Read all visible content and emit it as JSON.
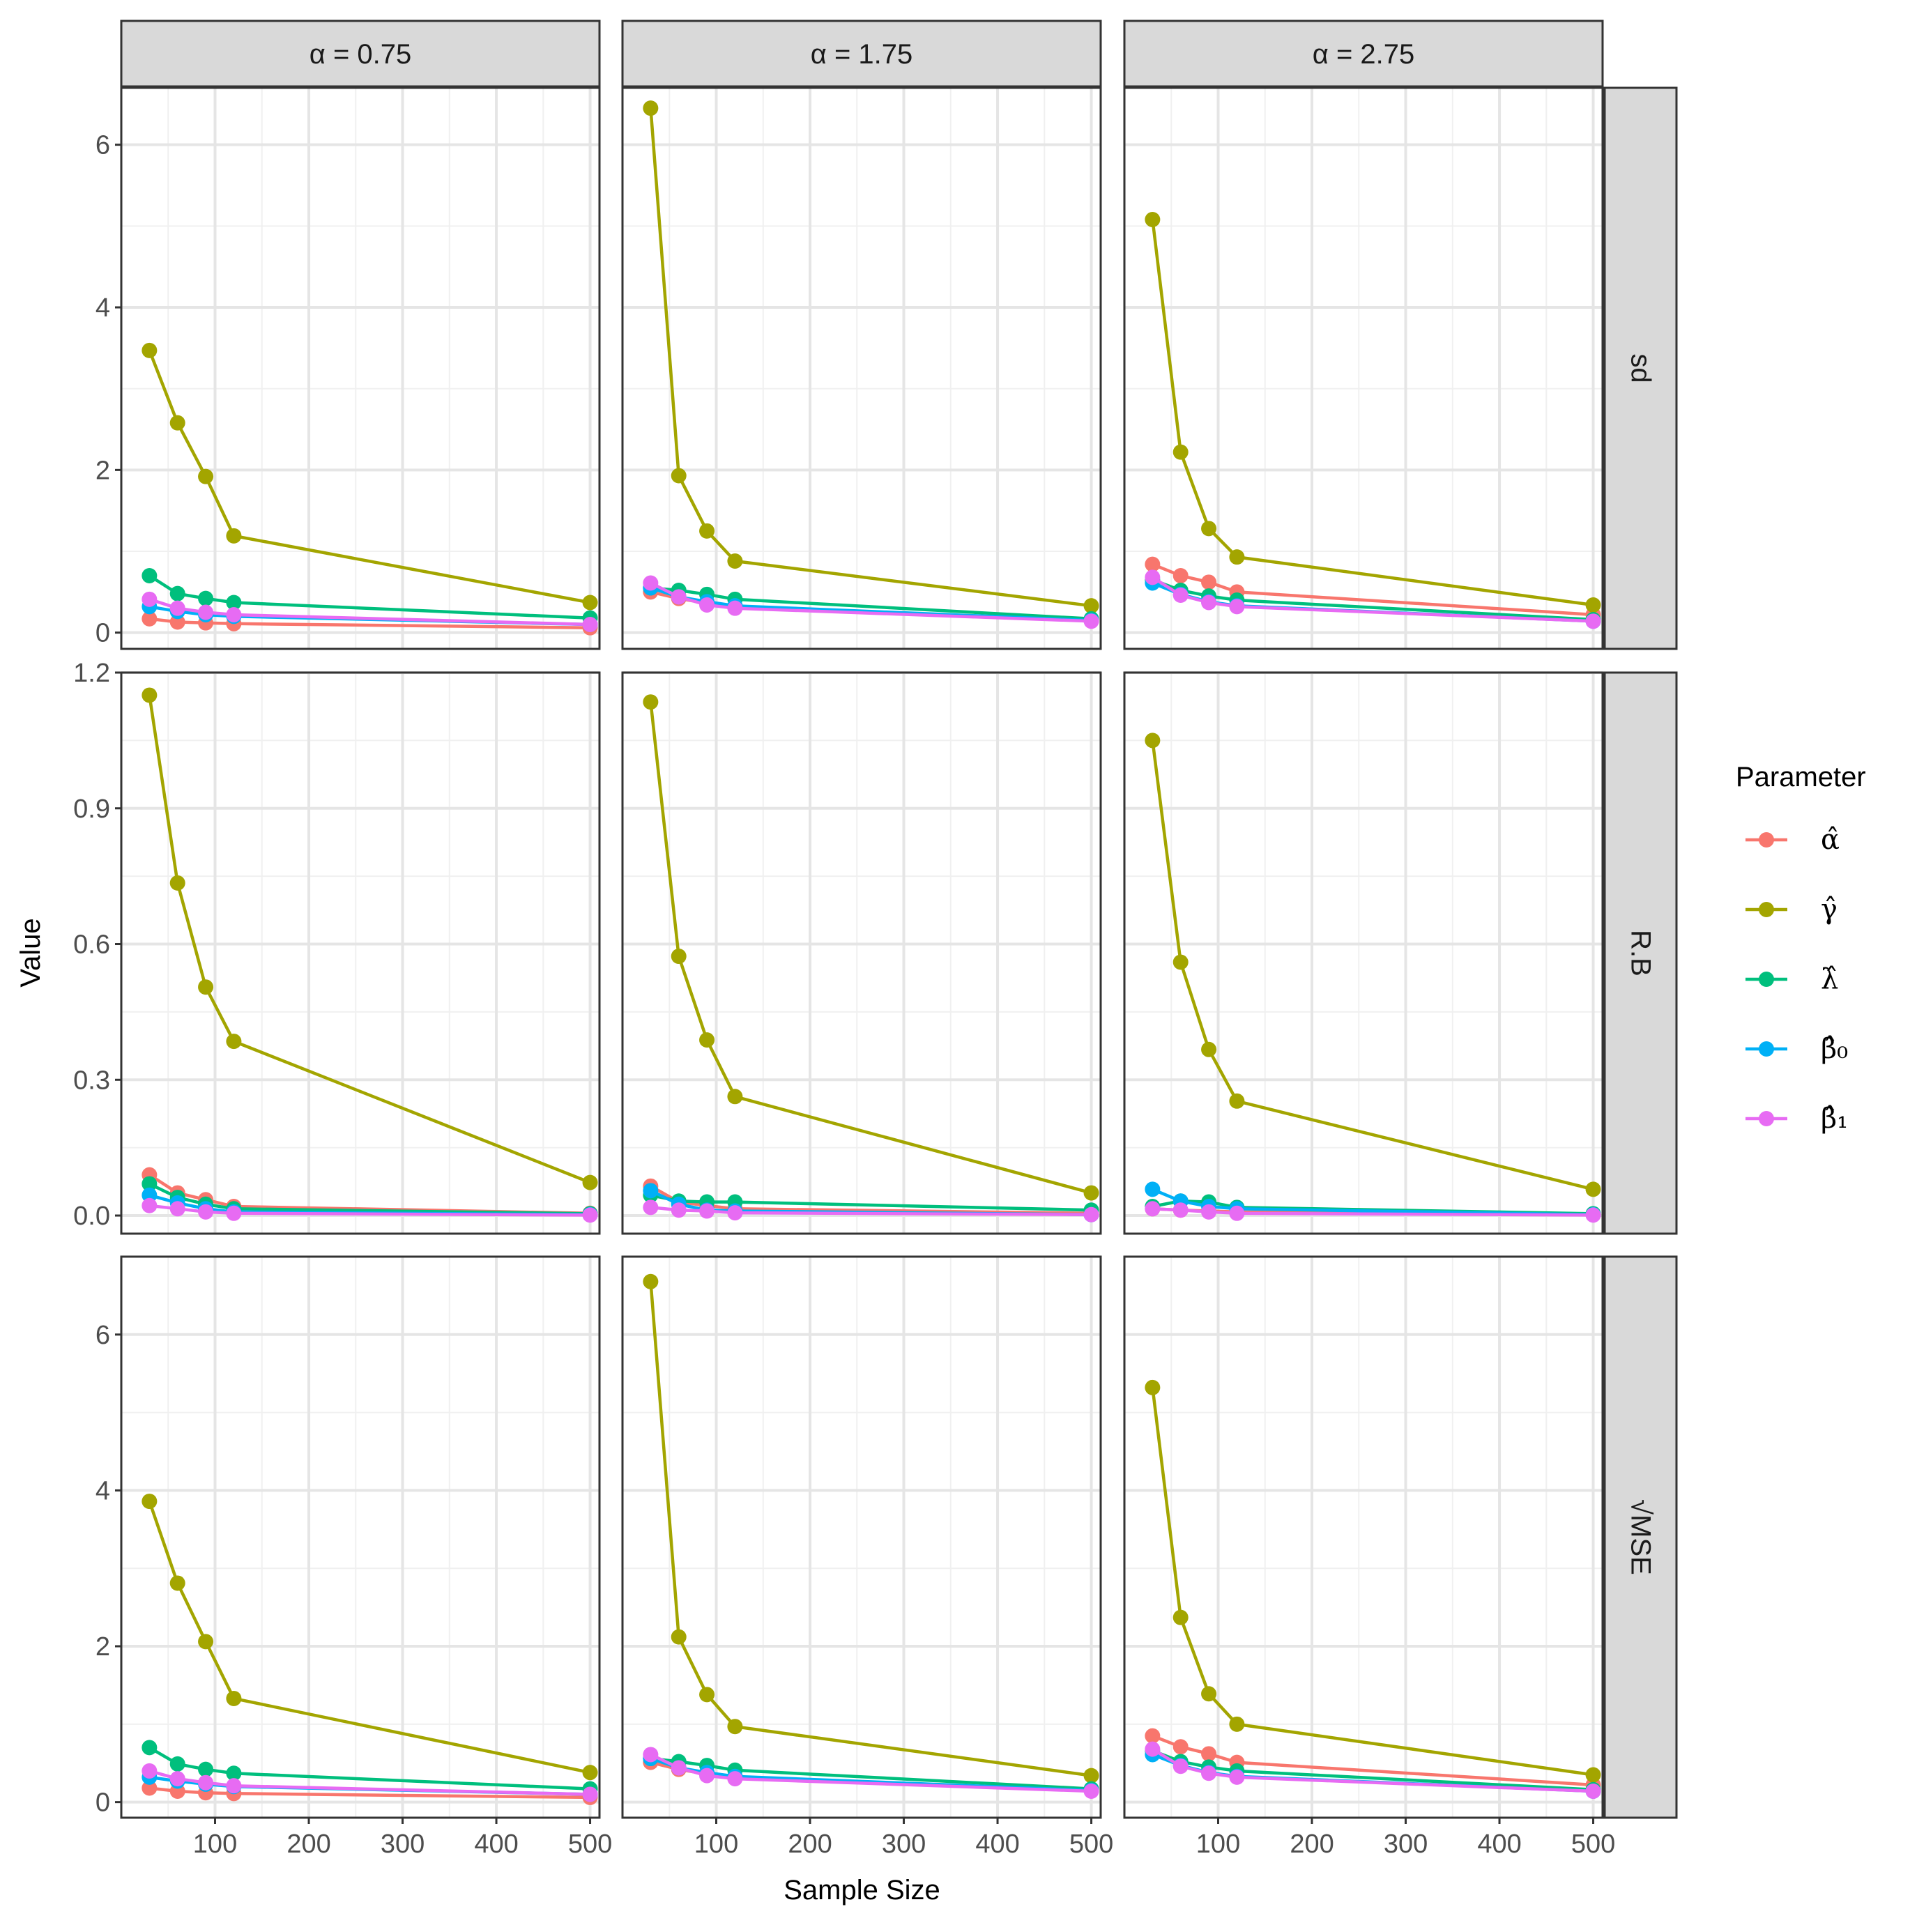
{
  "chart_data": {
    "type": "line",
    "xlabel": "Sample Size",
    "ylabel": "Value",
    "x": [
      30,
      60,
      90,
      120,
      500
    ],
    "xlim": [
      0,
      510
    ],
    "xticks": [
      100,
      200,
      300,
      400,
      500
    ],
    "xtick_labels": [
      "100",
      "200",
      "300",
      "400",
      "500"
    ],
    "columns": [
      {
        "label": "α = 0.75"
      },
      {
        "label": "α = 1.75"
      },
      {
        "label": "α = 2.75"
      }
    ],
    "rows": [
      {
        "label": "sd",
        "ylim": [
          -0.2,
          6.7
        ],
        "yticks": [
          0,
          2,
          4,
          6
        ],
        "ytick_labels": [
          "0",
          "2",
          "4",
          "6"
        ]
      },
      {
        "label": "R.B",
        "ylim": [
          -0.04,
          1.2
        ],
        "yticks": [
          0,
          0.3,
          0.6,
          0.9,
          1.2
        ],
        "ytick_labels": [
          "0.0",
          "0.3",
          "0.6",
          "0.9",
          "1.2"
        ]
      },
      {
        "label": "√MSE",
        "ylim": [
          -0.2,
          7.0
        ],
        "yticks": [
          0,
          2,
          4,
          6
        ],
        "ytick_labels": [
          "0",
          "2",
          "4",
          "6"
        ]
      }
    ],
    "legend": {
      "title": "Parameter",
      "position": "right",
      "entries": [
        {
          "name": "α̂",
          "color": "#F8766D"
        },
        {
          "name": "γ̂",
          "color": "#A3A500"
        },
        {
          "name": "λ̂",
          "color": "#00BF7D"
        },
        {
          "name": "β̂₀",
          "color": "#00B0F6"
        },
        {
          "name": "β̂₁",
          "color": "#E76BF3"
        }
      ]
    },
    "panels": [
      {
        "row": 0,
        "col": 0,
        "series": [
          {
            "name": "α̂",
            "values": [
              0.17,
              0.13,
              0.12,
              0.11,
              0.06
            ]
          },
          {
            "name": "γ̂",
            "values": [
              3.47,
              2.58,
              1.92,
              1.19,
              0.37
            ]
          },
          {
            "name": "λ̂",
            "values": [
              0.7,
              0.48,
              0.42,
              0.37,
              0.18
            ]
          },
          {
            "name": "β̂₀",
            "values": [
              0.32,
              0.26,
              0.22,
              0.2,
              0.1
            ]
          },
          {
            "name": "β̂₁",
            "values": [
              0.41,
              0.3,
              0.25,
              0.22,
              0.1
            ]
          }
        ]
      },
      {
        "row": 0,
        "col": 1,
        "series": [
          {
            "name": "α̂",
            "values": [
              0.5,
              0.42,
              0.36,
              0.32,
              0.15
            ]
          },
          {
            "name": "γ̂",
            "values": [
              6.45,
              1.93,
              1.25,
              0.88,
              0.33
            ]
          },
          {
            "name": "λ̂",
            "values": [
              0.55,
              0.52,
              0.47,
              0.41,
              0.17
            ]
          },
          {
            "name": "β̂₀",
            "values": [
              0.55,
              0.44,
              0.38,
              0.33,
              0.15
            ]
          },
          {
            "name": "β̂₁",
            "values": [
              0.61,
              0.44,
              0.34,
              0.3,
              0.14
            ]
          }
        ]
      },
      {
        "row": 0,
        "col": 2,
        "series": [
          {
            "name": "α̂",
            "values": [
              0.84,
              0.7,
              0.62,
              0.5,
              0.22
            ]
          },
          {
            "name": "γ̂",
            "values": [
              5.08,
              2.22,
              1.28,
              0.93,
              0.34
            ]
          },
          {
            "name": "λ̂",
            "values": [
              0.65,
              0.52,
              0.45,
              0.4,
              0.16
            ]
          },
          {
            "name": "β̂₀",
            "values": [
              0.61,
              0.47,
              0.38,
              0.33,
              0.14
            ]
          },
          {
            "name": "β̂₁",
            "values": [
              0.68,
              0.46,
              0.37,
              0.32,
              0.14
            ]
          }
        ]
      },
      {
        "row": 1,
        "col": 0,
        "series": [
          {
            "name": "α̂",
            "values": [
              0.09,
              0.05,
              0.035,
              0.02,
              0.005
            ]
          },
          {
            "name": "γ̂",
            "values": [
              1.15,
              0.735,
              0.505,
              0.385,
              0.073
            ]
          },
          {
            "name": "λ̂",
            "values": [
              0.07,
              0.04,
              0.025,
              0.015,
              0.004
            ]
          },
          {
            "name": "β̂₀",
            "values": [
              0.045,
              0.028,
              0.015,
              0.008,
              0.002
            ]
          },
          {
            "name": "β̂₁",
            "values": [
              0.022,
              0.015,
              0.008,
              0.005,
              0.001
            ]
          }
        ]
      },
      {
        "row": 1,
        "col": 1,
        "series": [
          {
            "name": "α̂",
            "values": [
              0.065,
              0.03,
              0.022,
              0.015,
              0.005
            ]
          },
          {
            "name": "γ̂",
            "values": [
              1.135,
              0.573,
              0.388,
              0.263,
              0.05
            ]
          },
          {
            "name": "λ̂",
            "values": [
              0.045,
              0.032,
              0.03,
              0.03,
              0.012
            ]
          },
          {
            "name": "β̂₀",
            "values": [
              0.055,
              0.025,
              0.012,
              0.01,
              0.002
            ]
          },
          {
            "name": "β̂₁",
            "values": [
              0.018,
              0.012,
              0.01,
              0.006,
              0.002
            ]
          }
        ]
      },
      {
        "row": 1,
        "col": 2,
        "series": [
          {
            "name": "α̂",
            "values": [
              0.015,
              0.012,
              0.01,
              0.008,
              0.002
            ]
          },
          {
            "name": "γ̂",
            "values": [
              1.05,
              0.56,
              0.367,
              0.253,
              0.058
            ]
          },
          {
            "name": "λ̂",
            "values": [
              0.02,
              0.032,
              0.03,
              0.018,
              0.004
            ]
          },
          {
            "name": "β̂₀",
            "values": [
              0.058,
              0.032,
              0.02,
              0.015,
              0.002
            ]
          },
          {
            "name": "β̂₁",
            "values": [
              0.015,
              0.012,
              0.008,
              0.005,
              0.001
            ]
          }
        ]
      },
      {
        "row": 2,
        "col": 0,
        "series": [
          {
            "name": "α̂",
            "values": [
              0.18,
              0.14,
              0.12,
              0.11,
              0.06
            ]
          },
          {
            "name": "γ̂",
            "values": [
              3.86,
              2.81,
              2.06,
              1.33,
              0.38
            ]
          },
          {
            "name": "λ̂",
            "values": [
              0.7,
              0.49,
              0.42,
              0.37,
              0.17
            ]
          },
          {
            "name": "β̂₀",
            "values": [
              0.32,
              0.27,
              0.23,
              0.2,
              0.1
            ]
          },
          {
            "name": "β̂₁",
            "values": [
              0.4,
              0.3,
              0.25,
              0.21,
              0.1
            ]
          }
        ]
      },
      {
        "row": 2,
        "col": 1,
        "series": [
          {
            "name": "α̂",
            "values": [
              0.51,
              0.42,
              0.36,
              0.32,
              0.15
            ]
          },
          {
            "name": "γ̂",
            "values": [
              6.68,
              2.12,
              1.38,
              0.97,
              0.34
            ]
          },
          {
            "name": "λ̂",
            "values": [
              0.56,
              0.52,
              0.47,
              0.41,
              0.17
            ]
          },
          {
            "name": "β̂₀",
            "values": [
              0.56,
              0.44,
              0.38,
              0.33,
              0.15
            ]
          },
          {
            "name": "β̂₁",
            "values": [
              0.61,
              0.44,
              0.34,
              0.3,
              0.14
            ]
          }
        ]
      },
      {
        "row": 2,
        "col": 2,
        "series": [
          {
            "name": "α̂",
            "values": [
              0.85,
              0.71,
              0.62,
              0.51,
              0.22
            ]
          },
          {
            "name": "γ̂",
            "values": [
              5.32,
              2.37,
              1.39,
              1.0,
              0.35
            ]
          },
          {
            "name": "λ̂",
            "values": [
              0.66,
              0.52,
              0.45,
              0.4,
              0.16
            ]
          },
          {
            "name": "β̂₀",
            "values": [
              0.61,
              0.47,
              0.38,
              0.33,
              0.14
            ]
          },
          {
            "name": "β̂₁",
            "values": [
              0.68,
              0.46,
              0.37,
              0.32,
              0.14
            ]
          }
        ]
      }
    ]
  }
}
